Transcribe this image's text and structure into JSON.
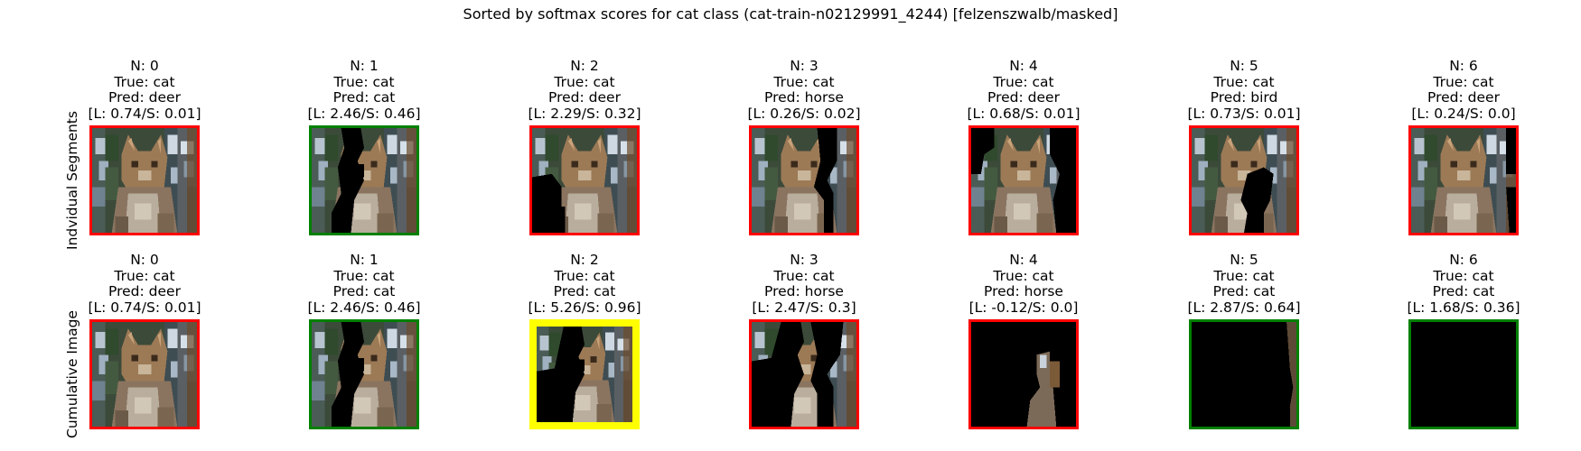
{
  "title": "Sorted by softmax scores for cat class (cat-train-n02129991_4244) [felzenszwalb/masked]",
  "colors": {
    "wrong": "#ff0000",
    "correct": "#008000",
    "best": "#ffff00",
    "masked": "#000000"
  },
  "rows": [
    {
      "label": "Indvidual Segments",
      "panels": [
        {
          "n": "N: 0",
          "true": "True: cat",
          "pred": "Pred: deer",
          "scores": "[L: 0.74/S: 0.01]",
          "status": "wrong",
          "mask": "none"
        },
        {
          "n": "N: 1",
          "true": "True: cat",
          "pred": "Pred: cat",
          "scores": "[L: 2.46/S: 0.46]",
          "status": "correct",
          "mask": "seg1"
        },
        {
          "n": "N: 2",
          "true": "True: cat",
          "pred": "Pred: deer",
          "scores": "[L: 2.29/S: 0.32]",
          "status": "wrong",
          "mask": "seg2"
        },
        {
          "n": "N: 3",
          "true": "True: cat",
          "pred": "Pred: horse",
          "scores": "[L: 0.26/S: 0.02]",
          "status": "wrong",
          "mask": "seg3"
        },
        {
          "n": "N: 4",
          "true": "True: cat",
          "pred": "Pred: deer",
          "scores": "[L: 0.68/S: 0.01]",
          "status": "wrong",
          "mask": "seg4"
        },
        {
          "n": "N: 5",
          "true": "True: cat",
          "pred": "Pred: bird",
          "scores": "[L: 0.73/S: 0.01]",
          "status": "wrong",
          "mask": "seg5"
        },
        {
          "n": "N: 6",
          "true": "True: cat",
          "pred": "Pred: deer",
          "scores": "[L: 0.24/S: 0.0]",
          "status": "wrong",
          "mask": "seg6"
        }
      ]
    },
    {
      "label": "Cumulative Image",
      "panels": [
        {
          "n": "N: 0",
          "true": "True: cat",
          "pred": "Pred: deer",
          "scores": "[L: 0.74/S: 0.01]",
          "status": "wrong",
          "mask": "none"
        },
        {
          "n": "N: 1",
          "true": "True: cat",
          "pred": "Pred: cat",
          "scores": "[L: 2.46/S: 0.46]",
          "status": "correct",
          "mask": "cum1"
        },
        {
          "n": "N: 2",
          "true": "True: cat",
          "pred": "Pred: cat",
          "scores": "[L: 5.26/S: 0.96]",
          "status": "best",
          "mask": "cum2"
        },
        {
          "n": "N: 3",
          "true": "True: cat",
          "pred": "Pred: horse",
          "scores": "[L: 2.47/S: 0.3]",
          "status": "wrong",
          "mask": "cum3"
        },
        {
          "n": "N: 4",
          "true": "True: cat",
          "pred": "Pred: horse",
          "scores": "[L: -0.12/S: 0.0]",
          "status": "wrong",
          "mask": "cum4"
        },
        {
          "n": "N: 5",
          "true": "True: cat",
          "pred": "Pred: cat",
          "scores": "[L: 2.87/S: 0.64]",
          "status": "correct",
          "mask": "cum5"
        },
        {
          "n": "N: 6",
          "true": "True: cat",
          "pred": "Pred: cat",
          "scores": "[L: 1.68/S: 0.36]",
          "status": "correct",
          "mask": "cum6"
        }
      ]
    }
  ]
}
